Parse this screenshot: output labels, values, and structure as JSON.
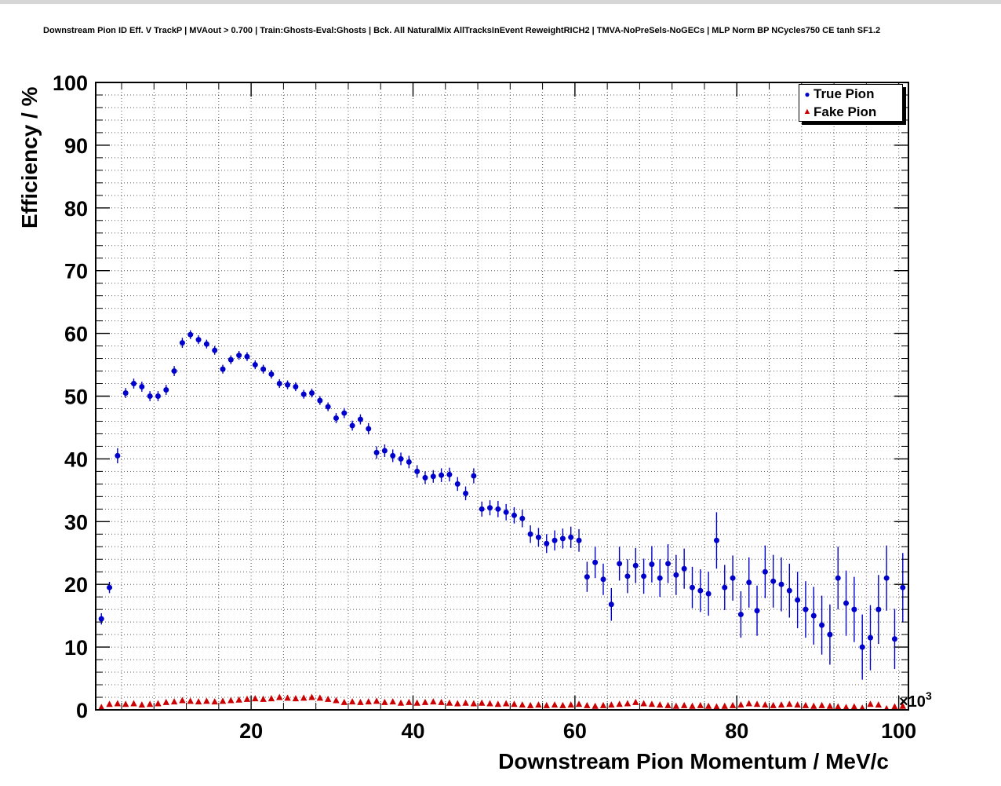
{
  "header": {
    "title": "Downstream Pion ID Eff. V TrackP | MVAout > 0.700 | Train:Ghosts-Eval:Ghosts | Bck. All NaturalMix AllTracksInEvent ReweightRICH2 | TMVA-NoPreSels-NoGECs | MLP Norm BP NCycles750 CE tanh SF1.2"
  },
  "legend": {
    "items": [
      {
        "label": "True Pion",
        "color": "#0000cc",
        "marker": "circle"
      },
      {
        "label": "Fake Pion",
        "color": "#cc0000",
        "marker": "triangle"
      }
    ]
  },
  "chart_data": {
    "type": "scatter",
    "title": "Downstream Pion ID Eff. V TrackP",
    "xlabel": "Downstream Pion Momentum / MeV/c",
    "ylabel": "Efficiency / %",
    "x_scale_base": "×10",
    "x_scale_exp": "3",
    "xlim": [
      0.8,
      101.2
    ],
    "ylim": [
      0,
      100
    ],
    "x_ticks": [
      20,
      40,
      60,
      80,
      100
    ],
    "y_ticks": [
      0,
      10,
      20,
      30,
      40,
      50,
      60,
      70,
      80,
      90,
      100
    ],
    "grid": {
      "style": "dotted",
      "x_minor_step": 4,
      "y_minor_step": 2
    },
    "legend_position": "top-right",
    "x_units": "10^3 MeV/c",
    "x": [
      1.5,
      2.5,
      3.5,
      4.5,
      5.5,
      6.5,
      7.5,
      8.5,
      9.5,
      10.5,
      11.5,
      12.5,
      13.5,
      14.5,
      15.5,
      16.5,
      17.5,
      18.5,
      19.5,
      20.5,
      21.5,
      22.5,
      23.5,
      24.5,
      25.5,
      26.5,
      27.5,
      28.5,
      29.5,
      30.5,
      31.5,
      32.5,
      33.5,
      34.5,
      35.5,
      36.5,
      37.5,
      38.5,
      39.5,
      40.5,
      41.5,
      42.5,
      43.5,
      44.5,
      45.5,
      46.5,
      47.5,
      48.5,
      49.5,
      50.5,
      51.5,
      52.5,
      53.5,
      54.5,
      55.5,
      56.5,
      57.5,
      58.5,
      59.5,
      60.5,
      61.5,
      62.5,
      63.5,
      64.5,
      65.5,
      66.5,
      67.5,
      68.5,
      69.5,
      70.5,
      71.5,
      72.5,
      73.5,
      74.5,
      75.5,
      76.5,
      77.5,
      78.5,
      79.5,
      80.5,
      81.5,
      82.5,
      83.5,
      84.5,
      85.5,
      86.5,
      87.5,
      88.5,
      89.5,
      90.5,
      91.5,
      92.5,
      93.5,
      94.5,
      95.5,
      96.5,
      97.5,
      98.5,
      99.5,
      100.5
    ],
    "series": [
      {
        "name": "True Pion",
        "color": "#0000cc",
        "marker": "circle",
        "y": [
          14.5,
          19.5,
          40.5,
          50.5,
          52.0,
          51.5,
          50.0,
          50.0,
          51.0,
          54.0,
          58.5,
          59.8,
          59.0,
          58.3,
          57.3,
          54.3,
          55.8,
          56.5,
          56.3,
          55.0,
          54.3,
          53.5,
          52.0,
          51.8,
          51.5,
          50.3,
          50.5,
          49.3,
          48.3,
          46.5,
          47.3,
          45.3,
          46.3,
          44.8,
          41.0,
          41.3,
          40.5,
          40.0,
          39.5,
          38.0,
          37.0,
          37.2,
          37.4,
          37.5,
          36.0,
          34.5,
          37.3,
          32.0,
          32.2,
          32.0,
          31.5,
          31.0,
          30.5,
          28.0,
          27.5,
          26.5,
          27.0,
          27.3,
          27.5,
          27.0,
          21.2,
          23.5,
          20.8,
          16.8,
          23.3,
          21.3,
          23.0,
          21.3,
          23.2,
          21.0,
          23.3,
          21.5,
          22.5,
          19.5,
          19.0,
          18.5,
          27.0,
          19.5,
          21.0,
          15.2,
          20.3,
          15.8,
          22.0,
          20.5,
          20.0,
          19.0,
          17.5,
          16.0,
          15.0,
          13.5,
          12.0,
          21.0,
          17.0,
          16.0,
          10.0,
          11.5,
          16.0,
          21.0,
          11.3,
          19.5
        ],
        "yerr": [
          0.9,
          0.9,
          1.2,
          0.8,
          0.8,
          0.8,
          0.8,
          0.8,
          0.8,
          0.8,
          0.8,
          0.7,
          0.7,
          0.7,
          0.7,
          0.7,
          0.7,
          0.7,
          0.7,
          0.7,
          0.7,
          0.7,
          0.7,
          0.7,
          0.7,
          0.7,
          0.7,
          0.7,
          0.7,
          0.8,
          0.8,
          0.8,
          0.8,
          0.9,
          1.0,
          1.0,
          1.0,
          1.0,
          1.0,
          1.0,
          1.0,
          1.0,
          1.1,
          1.1,
          1.1,
          1.1,
          1.2,
          1.2,
          1.2,
          1.3,
          1.3,
          1.3,
          1.4,
          1.4,
          1.5,
          1.5,
          1.6,
          1.6,
          1.7,
          1.8,
          2.4,
          2.5,
          2.5,
          2.6,
          2.7,
          2.7,
          2.8,
          2.8,
          2.9,
          3.0,
          3.1,
          3.2,
          3.2,
          3.3,
          3.4,
          3.5,
          4.5,
          3.6,
          3.6,
          3.7,
          4.0,
          4.0,
          4.2,
          4.2,
          4.3,
          4.3,
          4.5,
          4.5,
          4.6,
          4.7,
          4.8,
          5.0,
          5.2,
          5.2,
          5.2,
          5.2,
          5.5,
          5.2,
          4.8,
          5.5
        ]
      },
      {
        "name": "Fake Pion",
        "color": "#cc0000",
        "marker": "triangle",
        "y": [
          0.4,
          0.9,
          1.0,
          0.9,
          1.0,
          0.8,
          0.9,
          1.0,
          1.2,
          1.3,
          1.5,
          1.4,
          1.3,
          1.4,
          1.3,
          1.4,
          1.5,
          1.6,
          1.7,
          1.8,
          1.7,
          1.8,
          2.0,
          1.9,
          1.8,
          1.9,
          2.0,
          1.9,
          1.7,
          1.5,
          1.2,
          1.3,
          1.2,
          1.3,
          1.4,
          1.2,
          1.3,
          1.1,
          1.2,
          1.1,
          1.2,
          1.3,
          1.2,
          1.1,
          1.0,
          1.1,
          1.0,
          1.1,
          1.0,
          0.9,
          1.0,
          0.9,
          0.8,
          0.7,
          0.8,
          0.7,
          0.8,
          0.7,
          0.8,
          0.9,
          0.7,
          0.6,
          0.7,
          0.8,
          0.9,
          1.0,
          1.2,
          1.0,
          0.9,
          0.8,
          0.7,
          0.6,
          0.7,
          0.6,
          0.7,
          0.6,
          0.5,
          0.6,
          0.7,
          0.8,
          1.0,
          0.9,
          0.8,
          0.7,
          0.8,
          0.9,
          0.8,
          0.7,
          0.6,
          0.7,
          0.6,
          0.5,
          0.4,
          0.5,
          0.3,
          0.9,
          0.8,
          0.2,
          0.5,
          0.6
        ],
        "yerr": 0.15
      }
    ]
  }
}
